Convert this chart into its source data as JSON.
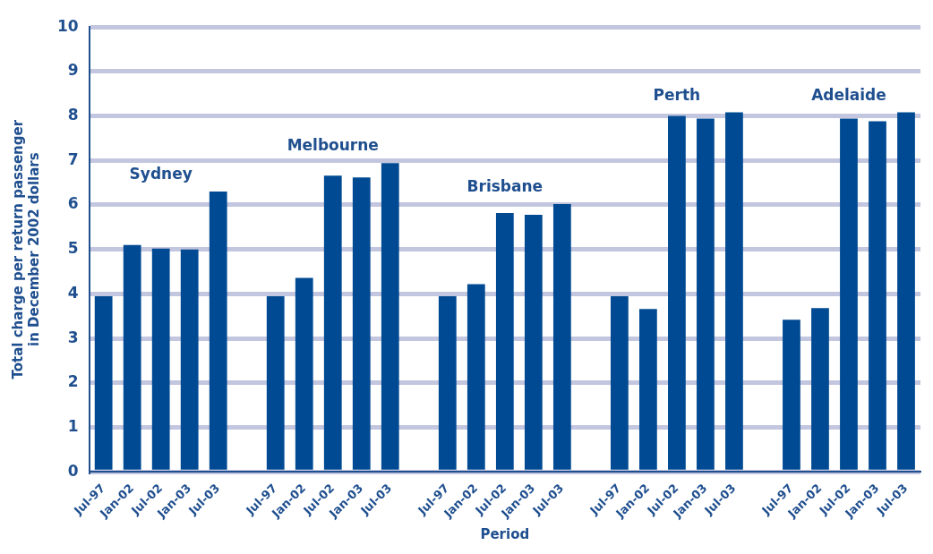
{
  "chart_data": {
    "type": "bar",
    "xlabel": "Period",
    "ylabel": "Total charge per return passenger\nin December 2002 dollars",
    "categories": [
      "Jul-97",
      "Jan-02",
      "Jul-02",
      "Jan-03",
      "Jul-03",
      null,
      "Jul-97",
      "Jan-02",
      "Jul-02",
      "Jan-03",
      "Jul-03",
      null,
      "Jul-97",
      "Jan-02",
      "Jul-02",
      "Jan-03",
      "Jul-03",
      null,
      "Jul-97",
      "Jan-02",
      "Jul-02",
      "Jan-03",
      "Jul-03",
      null,
      "Jul-97",
      "Jan-02",
      "Jul-02",
      "Jan-03",
      "Jul-03"
    ],
    "series": [
      {
        "name": "Sydney",
        "color": "#004a93",
        "values": [
          3.95,
          5.1,
          5.02,
          5.0,
          6.3,
          null,
          null,
          null,
          null,
          null,
          null,
          null,
          null,
          null,
          null,
          null,
          null,
          null,
          null,
          null,
          null,
          null,
          null,
          null,
          null,
          null,
          null,
          null,
          null
        ]
      },
      {
        "name": "Melbourne",
        "color": "#004a93",
        "values": [
          null,
          null,
          null,
          null,
          null,
          null,
          3.95,
          4.36,
          6.66,
          6.62,
          6.94,
          null,
          null,
          null,
          null,
          null,
          null,
          null,
          null,
          null,
          null,
          null,
          null,
          null,
          null,
          null,
          null,
          null,
          null
        ]
      },
      {
        "name": "Brisbane",
        "color": "#004a93",
        "values": [
          null,
          null,
          null,
          null,
          null,
          null,
          null,
          null,
          null,
          null,
          null,
          null,
          3.95,
          4.22,
          5.82,
          5.78,
          6.02,
          null,
          null,
          null,
          null,
          null,
          null,
          null,
          null,
          null,
          null,
          null,
          null
        ]
      },
      {
        "name": "Perth",
        "color": "#004a93",
        "values": [
          null,
          null,
          null,
          null,
          null,
          null,
          null,
          null,
          null,
          null,
          null,
          null,
          null,
          null,
          null,
          null,
          null,
          null,
          3.95,
          3.66,
          8.0,
          7.94,
          8.08,
          null,
          null,
          null,
          null,
          null,
          null
        ]
      },
      {
        "name": "Adelaide",
        "color": "#004a93",
        "values": [
          null,
          null,
          null,
          null,
          null,
          null,
          null,
          null,
          null,
          null,
          null,
          null,
          null,
          null,
          null,
          null,
          null,
          null,
          null,
          null,
          null,
          null,
          null,
          null,
          3.42,
          3.68,
          7.94,
          7.88,
          8.08
        ]
      }
    ],
    "ylim": [
      0,
      10
    ],
    "yticks": [
      0,
      1,
      2,
      3,
      4,
      5,
      6,
      7,
      8,
      9,
      10
    ],
    "grid": "y",
    "legend": false
  }
}
